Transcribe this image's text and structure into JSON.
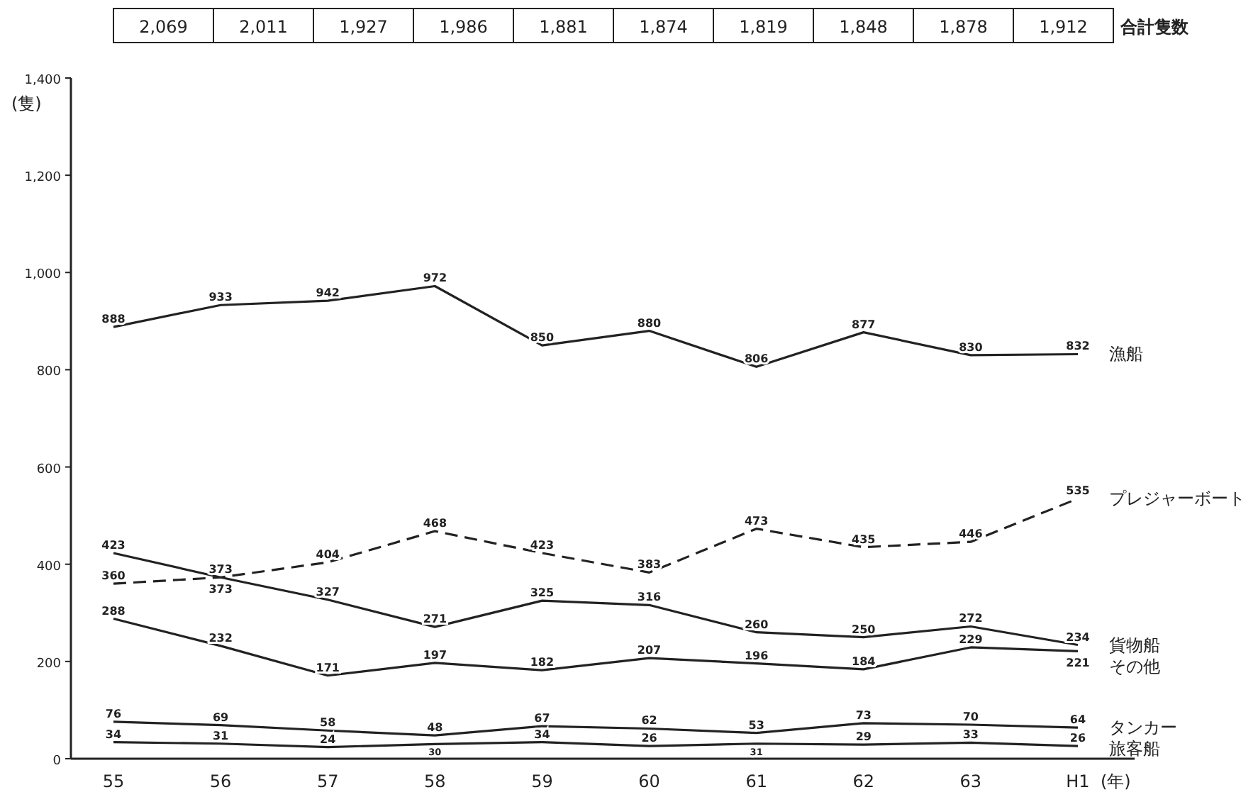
{
  "chart_data": {
    "type": "line",
    "ylabel": "(隻)",
    "xlabel": "(年)",
    "categories": [
      "55",
      "56",
      "57",
      "58",
      "59",
      "60",
      "61",
      "62",
      "63",
      "H1"
    ],
    "ylim": [
      0,
      1400
    ],
    "yticks": [
      0,
      {
        "value": 200,
        "label": "200"
      },
      {
        "value": 400,
        "label": "400"
      },
      {
        "value": 600,
        "label": "600"
      },
      {
        "value": 800,
        "label": "800"
      },
      {
        "value": 1000,
        "label": "1,000"
      },
      {
        "value": 1200,
        "label": "1,200"
      },
      {
        "value": 1400,
        "label": "1,400"
      }
    ],
    "series": [
      {
        "name": "漁船",
        "color": "#222222",
        "line_style": "solid",
        "values": [
          888,
          933,
          942,
          972,
          850,
          880,
          806,
          877,
          830,
          832
        ]
      },
      {
        "name": "プレジャーボート",
        "color": "#222222",
        "line_style": "dashed",
        "values": [
          360,
          373,
          404,
          468,
          423,
          383,
          473,
          435,
          446,
          535
        ]
      },
      {
        "name": "貨物船",
        "color": "#222222",
        "line_style": "solid",
        "values": [
          423,
          373,
          327,
          271,
          325,
          316,
          260,
          250,
          272,
          234
        ]
      },
      {
        "name": "その他",
        "color": "#222222",
        "line_style": "solid",
        "values": [
          288,
          232,
          171,
          197,
          182,
          207,
          196,
          184,
          229,
          221
        ]
      },
      {
        "name": "タンカー",
        "color": "#222222",
        "line_style": "solid",
        "values": [
          76,
          69,
          58,
          48,
          67,
          62,
          53,
          73,
          70,
          64
        ]
      },
      {
        "name": "旅客船",
        "color": "#222222",
        "line_style": "solid",
        "values": [
          34,
          31,
          24,
          30,
          34,
          26,
          31,
          29,
          33,
          26
        ]
      }
    ],
    "data_labels": true,
    "totals": [
      "2,069",
      "2,011",
      "1,927",
      "1,986",
      "1,881",
      "1,874",
      "1,819",
      "1,848",
      "1,878",
      "1,912"
    ],
    "annotations": [
      "合計隻数"
    ],
    "grid": false,
    "marker": "none"
  }
}
